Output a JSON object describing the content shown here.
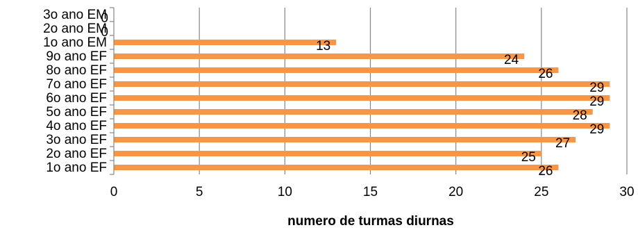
{
  "chart_data": {
    "type": "bar",
    "orientation": "horizontal",
    "categories": [
      "1o ano EF",
      "2o ano EF",
      "3o ano EF",
      "4o ano EF",
      "5o ano EF",
      "6o ano EF",
      "7o ano EF",
      "8o ano EF",
      "9o ano EF",
      "1o ano EM",
      "2o ano EM",
      "3o ano EM"
    ],
    "values": [
      26,
      25,
      27,
      29,
      28,
      29,
      29,
      26,
      24,
      13,
      0,
      0
    ],
    "data_labels": [
      "26",
      "25",
      "27",
      "29",
      "28",
      "29",
      "29",
      "26",
      "24",
      "13",
      "0",
      "0"
    ],
    "xlabel": "numero de turmas diurnas",
    "ylabel": "",
    "title": "",
    "xlim": [
      0,
      30
    ],
    "x_ticks": [
      "0",
      "5",
      "10",
      "15",
      "20",
      "25",
      "30"
    ],
    "grid": "vertical",
    "legend": "none",
    "colors": {
      "bar": "#f79646",
      "grid": "#868686",
      "axis": "#868686",
      "text": "#000000"
    }
  }
}
